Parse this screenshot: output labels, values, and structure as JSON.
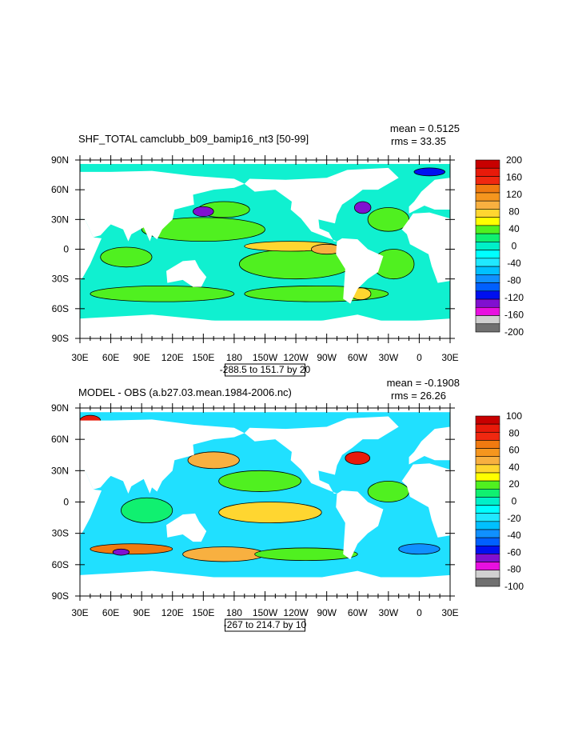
{
  "chart_data": [
    {
      "type": "heatmap",
      "title": "SHF_TOTAL camclubb_b09_bamip16_nt3 [50-99]",
      "mean_label": "mean = 0.5125",
      "rms_label": "rms = 33.35",
      "range_label": "-288.5 to 151.7 by 20",
      "ytick_labels": [
        "90N",
        "60N",
        "30N",
        "0",
        "30S",
        "60S",
        "90S"
      ],
      "xtick_labels": [
        "30E",
        "60E",
        "90E",
        "120E",
        "150E",
        "180",
        "150W",
        "120W",
        "90W",
        "60W",
        "30W",
        "0",
        "30E"
      ],
      "colorbar_labels": [
        "200",
        "160",
        "120",
        "80",
        "40",
        "0",
        "-40",
        "-80",
        "-120",
        "-160",
        "-200"
      ],
      "colorbar_range": [
        -200,
        200
      ],
      "colorbar_colors": [
        "#c80000",
        "#e81a0a",
        "#f02810",
        "#f07a10",
        "#f5961e",
        "#f8b040",
        "#ffd630",
        "#ffff00",
        "#50f020",
        "#10f070",
        "#00f0c8",
        "#00ffff",
        "#20e8ff",
        "#00c0ff",
        "#1090ff",
        "#0060ff",
        "#0010f0",
        "#8010d0",
        "#e810e0",
        "#d0d0d0",
        "#707070"
      ],
      "base_color": "#10f0d0"
    },
    {
      "type": "heatmap",
      "title": "MODEL - OBS (a.b27.03.mean.1984-2006.nc)",
      "mean_label": "mean = -0.1908",
      "rms_label": "rms = 26.26",
      "range_label": "-267 to 214.7 by 10",
      "ytick_labels": [
        "90N",
        "60N",
        "30N",
        "0",
        "30S",
        "60S",
        "90S"
      ],
      "xtick_labels": [
        "30E",
        "60E",
        "90E",
        "120E",
        "150E",
        "180",
        "150W",
        "120W",
        "90W",
        "60W",
        "30W",
        "0",
        "30E"
      ],
      "colorbar_labels": [
        "100",
        "80",
        "60",
        "40",
        "20",
        "0",
        "-20",
        "-40",
        "-60",
        "-80",
        "-100"
      ],
      "colorbar_range": [
        -100,
        100
      ],
      "colorbar_colors": [
        "#c80000",
        "#e81a0a",
        "#f02810",
        "#f07a10",
        "#f5961e",
        "#f8b040",
        "#ffd630",
        "#ffff00",
        "#50f020",
        "#10f070",
        "#00f0c8",
        "#00ffff",
        "#20e8ff",
        "#00c0ff",
        "#1090ff",
        "#0060ff",
        "#0010f0",
        "#8010d0",
        "#e810e0",
        "#d0d0d0",
        "#707070"
      ],
      "base_color": "#20e0ff"
    }
  ]
}
